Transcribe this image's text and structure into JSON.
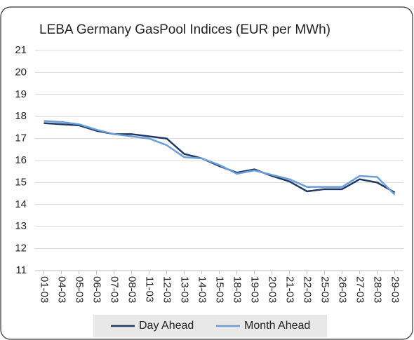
{
  "chart_data": {
    "type": "line",
    "title": "LEBA Germany GasPool Indices (EUR per MWh)",
    "categories": [
      "01-03",
      "04-03",
      "05-03",
      "06-03",
      "07-03",
      "08-03",
      "11-03",
      "12-03",
      "13-03",
      "14-03",
      "15-03",
      "18-03",
      "19-03",
      "20-03",
      "21-03",
      "22-03",
      "25-03",
      "26-03",
      "27-03",
      "28-03",
      "29-03"
    ],
    "series": [
      {
        "name": "Day Ahead",
        "color": "#1f3864",
        "values": [
          17.7,
          17.65,
          17.6,
          17.35,
          17.2,
          17.2,
          17.1,
          17.0,
          16.3,
          16.1,
          15.75,
          15.45,
          15.6,
          15.3,
          15.05,
          14.6,
          14.7,
          14.7,
          15.15,
          15.0,
          14.55
        ]
      },
      {
        "name": "Month Ahead",
        "color": "#6a9fdb",
        "values": [
          17.8,
          17.75,
          17.65,
          17.4,
          17.2,
          17.1,
          17.0,
          16.7,
          16.15,
          16.1,
          15.8,
          15.4,
          15.55,
          15.35,
          15.15,
          14.8,
          14.8,
          14.8,
          15.3,
          15.25,
          14.45
        ]
      }
    ],
    "ylim": [
      11,
      21
    ],
    "yticks": [
      11,
      12,
      13,
      14,
      15,
      16,
      17,
      18,
      19,
      20,
      21
    ],
    "grid": true,
    "legend": "bottom"
  }
}
